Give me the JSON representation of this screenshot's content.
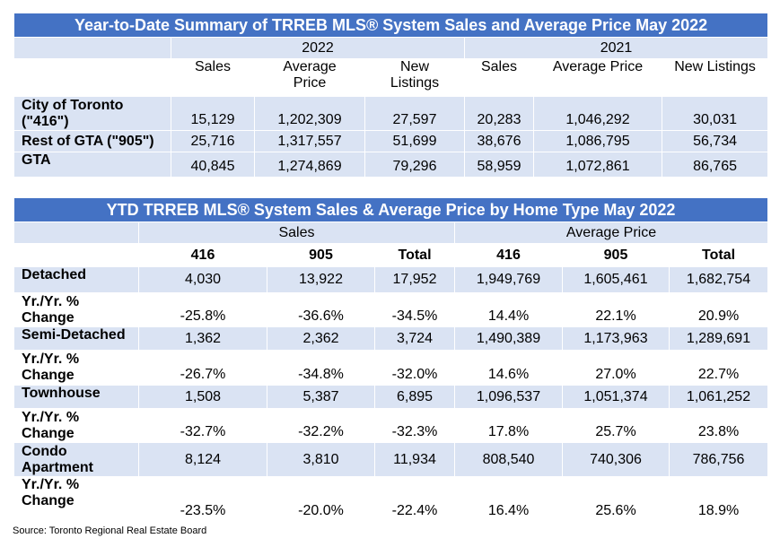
{
  "table1": {
    "title": "Year-to-Date Summary of TRREB MLS® System Sales and Average Price May 2022",
    "year_a": "2022",
    "year_b": "2021",
    "headers": {
      "sales_a": "Sales",
      "avg_a_1": "Average",
      "avg_a_2": "Price",
      "new_a_1": "New",
      "new_a_2": "Listings",
      "sales_b": "Sales",
      "avg_b": "Average Price",
      "new_b": "New Listings"
    },
    "rows": [
      {
        "label_1": "City of Toronto",
        "label_2": "(\"416\")",
        "v": [
          "15,129",
          "1,202,309",
          "27,597",
          "20,283",
          "1,046,292",
          "30,031"
        ]
      },
      {
        "label_1": "Rest of GTA (\"905\")",
        "v": [
          "25,716",
          "1,317,557",
          "51,699",
          "38,676",
          "1,086,795",
          "56,734"
        ]
      },
      {
        "label_1": "GTA",
        "v": [
          "40,845",
          "1,274,869",
          "79,296",
          "58,959",
          "1,072,861",
          "86,765"
        ]
      }
    ]
  },
  "table2": {
    "title": "YTD TRREB MLS® System Sales & Average Price by Home Type May 2022",
    "group_sales": "Sales",
    "group_price": "Average Price",
    "subheaders": [
      "416",
      "905",
      "Total",
      "416",
      "905",
      "Total"
    ],
    "rows": [
      {
        "label_1": "Detached",
        "v": [
          "4,030",
          "13,922",
          "17,952",
          "1,949,769",
          "1,605,461",
          "1,682,754"
        ]
      },
      {
        "label_1": "Yr./Yr. %",
        "label_2": "Change",
        "v": [
          "-25.8%",
          "-36.6%",
          "-34.5%",
          "14.4%",
          "22.1%",
          "20.9%"
        ]
      },
      {
        "label_1": "Semi-Detached",
        "v": [
          "1,362",
          "2,362",
          "3,724",
          "1,490,389",
          "1,173,963",
          "1,289,691"
        ]
      },
      {
        "label_1": "Yr./Yr. %",
        "label_2": "Change",
        "v": [
          "-26.7%",
          "-34.8%",
          "-32.0%",
          "14.6%",
          "27.0%",
          "22.7%"
        ]
      },
      {
        "label_1": "Townhouse",
        "v": [
          "1,508",
          "5,387",
          "6,895",
          "1,096,537",
          "1,051,374",
          "1,061,252"
        ]
      },
      {
        "label_1": "Yr./Yr. %",
        "label_2": "Change",
        "v": [
          "-32.7%",
          "-32.2%",
          "-32.3%",
          "17.8%",
          "25.7%",
          "23.8%"
        ]
      },
      {
        "label_1": "Condo",
        "label_2": "Apartment",
        "v": [
          "8,124",
          "3,810",
          "11,934",
          "808,540",
          "740,306",
          "786,756"
        ]
      },
      {
        "label_1": "Yr./Yr. %",
        "label_2": "Change",
        "v": [
          "-23.5%",
          "-20.0%",
          "-22.4%",
          "16.4%",
          "25.6%",
          "18.9%"
        ]
      }
    ]
  },
  "source": "Source: Toronto Regional Real Estate Board"
}
